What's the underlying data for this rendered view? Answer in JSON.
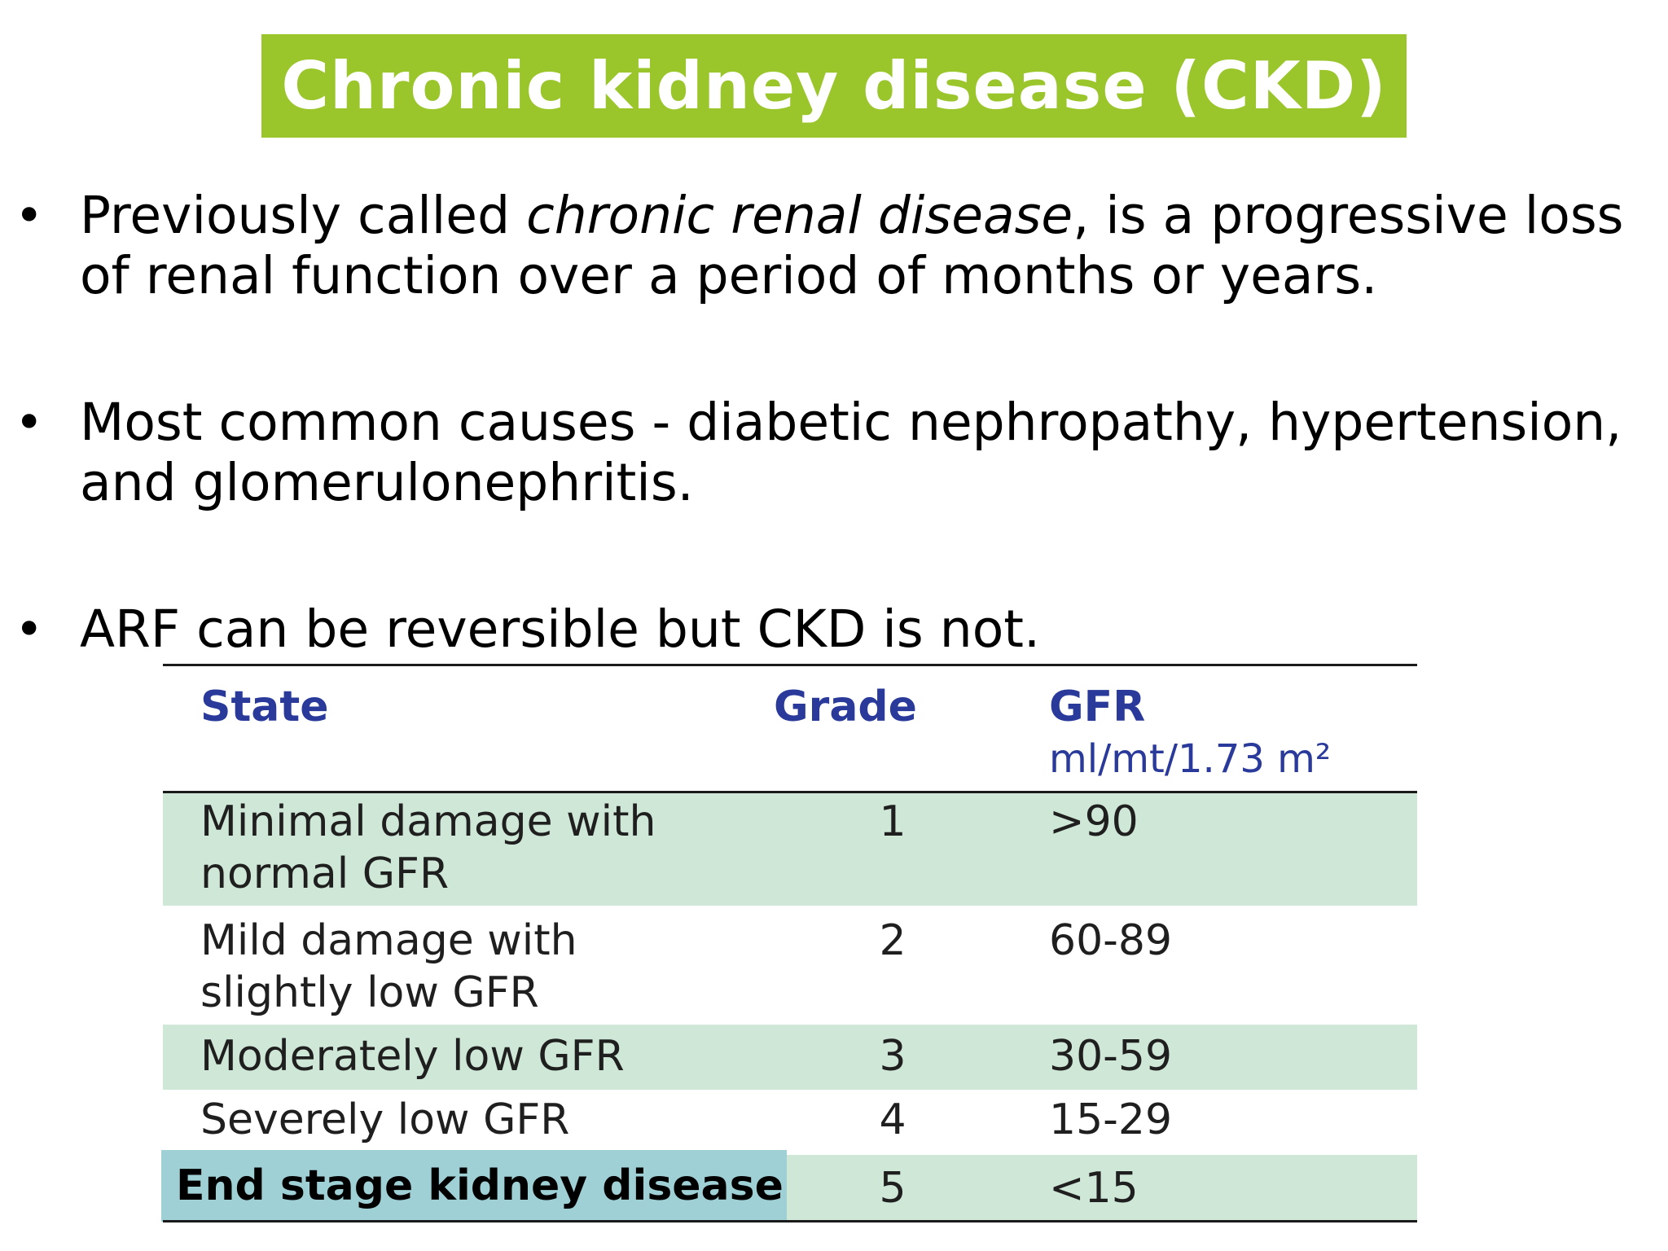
{
  "slide": {
    "title": "Chronic kidney disease (CKD)",
    "title_bg": "#9ac52b",
    "bullets": [
      {
        "line1_a": "Previously called ",
        "line1_italic": "chronic renal disease",
        "line1_b": ", is a progressive loss",
        "line2": "of renal function over a period of months or years."
      },
      {
        "line1": "Most common causes - diabetic nephropathy, hypertension,",
        "line2": "and glomerulonephritis."
      },
      {
        "line1": "ARF can be reversible but CKD is not."
      }
    ]
  },
  "table": {
    "headers": {
      "state": "State",
      "grade": "Grade",
      "gfr": "GFR",
      "gfr_unit": "ml/mt/1.73 m²"
    },
    "rows": [
      {
        "state_line1": "Minimal damage with",
        "state_line2": "normal GFR",
        "grade": "1",
        "gfr": ">90"
      },
      {
        "state_line1": "Mild damage with",
        "state_line2": "slightly low GFR",
        "grade": "2",
        "gfr": "60-89"
      },
      {
        "state_line1": "Moderately low GFR",
        "grade": "3",
        "gfr": "30-59"
      },
      {
        "state_line1": "Severely low GFR",
        "grade": "4",
        "gfr": "15-29"
      },
      {
        "state_line1": "End stage kidney disease",
        "grade": "5",
        "gfr": "<15"
      }
    ],
    "shade_color": "#cfe7d6",
    "highlight_color": "#9fd0d6",
    "header_color": "#2a3a9a"
  }
}
